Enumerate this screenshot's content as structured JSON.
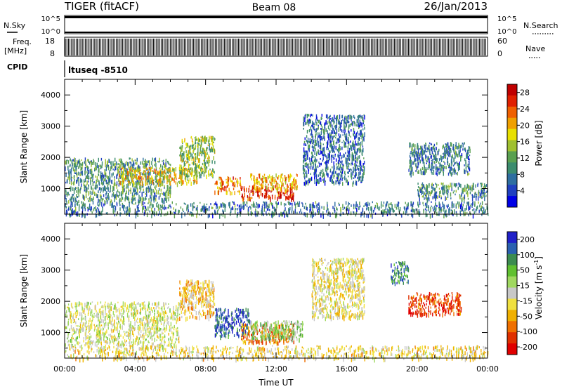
{
  "header": {
    "station": "TIGER (fitACF)",
    "beam": "Beam 08",
    "date": "26/Jan/2013"
  },
  "strips": {
    "nsky_label": "N.Sky",
    "nsky_ticks": [
      "10^5",
      "10^0"
    ],
    "nsearch_label": "N.Search",
    "nsearch_ticks": [
      "10^5",
      "10^0"
    ],
    "freq_label": "Freq.",
    "freq_unit": "[MHz]",
    "freq_ticks": [
      "18",
      "8"
    ],
    "nave_label": "Nave",
    "nave_ticks": [
      "60",
      "0"
    ],
    "cpid_label": "CPID",
    "cpid_value": "ltuseq -8510"
  },
  "colors": {
    "power": [
      "#0000e6",
      "#2040c0",
      "#2e6ea0",
      "#3c8c6e",
      "#5aa050",
      "#a0c030",
      "#e8e000",
      "#f0a000",
      "#f06000",
      "#e02000",
      "#c00000"
    ],
    "velocity": [
      "#2020c8",
      "#2a60b0",
      "#3c8c50",
      "#60c030",
      "#a0d860",
      "#c8c8c8",
      "#f0e040",
      "#f0b000",
      "#f07000",
      "#e03000",
      "#e00000"
    ]
  },
  "chart_data": [
    {
      "type": "heatmap",
      "title": "Power",
      "ylabel": "Slant Range [km]",
      "xlabel": "",
      "xlim": [
        "00:00",
        "24:00"
      ],
      "ylim": [
        180,
        4500
      ],
      "y_ticks": [
        1000,
        2000,
        3000,
        4000
      ],
      "x_ticks": [
        "00:00",
        "04:00",
        "08:00",
        "12:00",
        "16:00",
        "20:00",
        "00:00"
      ],
      "colorbar": {
        "label": "Power [dB]",
        "ticks": [
          4,
          8,
          12,
          16,
          20,
          24,
          28
        ],
        "range": [
          0,
          30
        ]
      },
      "regions": [
        {
          "t0": 0.0,
          "t1": 6.0,
          "r0": 600,
          "r1": 2000,
          "value": 10
        },
        {
          "t0": 3.0,
          "t1": 7.5,
          "r0": 1200,
          "r1": 1700,
          "value": 18
        },
        {
          "t0": 6.5,
          "t1": 8.5,
          "r0": 1400,
          "r1": 2700,
          "value": 14
        },
        {
          "t0": 8.5,
          "t1": 10.0,
          "r0": 900,
          "r1": 1400,
          "value": 22
        },
        {
          "t0": 10.0,
          "t1": 13.0,
          "r0": 700,
          "r1": 1100,
          "value": 27
        },
        {
          "t0": 10.5,
          "t1": 13.2,
          "r0": 1000,
          "r1": 1500,
          "value": 20
        },
        {
          "t0": 0.0,
          "t1": 24.0,
          "r0": 180,
          "r1": 600,
          "value": 8
        },
        {
          "t0": 13.5,
          "t1": 17.0,
          "r0": 1200,
          "r1": 3400,
          "value": 7
        },
        {
          "t0": 19.5,
          "t1": 23.0,
          "r0": 1500,
          "r1": 2500,
          "value": 8
        },
        {
          "t0": 20.0,
          "t1": 24.0,
          "r0": 700,
          "r1": 1200,
          "value": 9
        }
      ]
    },
    {
      "type": "heatmap",
      "title": "Velocity",
      "ylabel": "Slant Range [km]",
      "xlabel": "Time UT",
      "xlim": [
        "00:00",
        "24:00"
      ],
      "ylim": [
        180,
        4500
      ],
      "y_ticks": [
        1000,
        2000,
        3000,
        4000
      ],
      "x_ticks": [
        "00:00",
        "04:00",
        "08:00",
        "12:00",
        "16:00",
        "20:00",
        "00:00"
      ],
      "colorbar": {
        "label": "Velocity [m s^-1]",
        "ticks": [
          200,
          100,
          50,
          15,
          -15,
          -50,
          -100,
          -200
        ],
        "range": [
          -250,
          250
        ]
      },
      "regions": [
        {
          "t0": 0.0,
          "t1": 6.5,
          "r0": 600,
          "r1": 2000,
          "value": 0
        },
        {
          "t0": 6.5,
          "t1": 8.5,
          "r0": 1500,
          "r1": 2700,
          "value": -60
        },
        {
          "t0": 8.5,
          "t1": 10.5,
          "r0": 900,
          "r1": 1800,
          "value": 180
        },
        {
          "t0": 10.0,
          "t1": 13.0,
          "r0": 700,
          "r1": 1300,
          "value": -120
        },
        {
          "t0": 10.5,
          "t1": 13.5,
          "r0": 800,
          "r1": 1400,
          "value": 60
        },
        {
          "t0": 0.0,
          "t1": 24.0,
          "r0": 180,
          "r1": 600,
          "value": -40
        },
        {
          "t0": 14.0,
          "t1": 17.0,
          "r0": 1500,
          "r1": 3400,
          "value": -30
        },
        {
          "t0": 19.5,
          "t1": 22.5,
          "r0": 1600,
          "r1": 2300,
          "value": -180
        },
        {
          "t0": 18.5,
          "t1": 19.5,
          "r0": 2600,
          "r1": 3300,
          "value": 150
        }
      ]
    }
  ]
}
